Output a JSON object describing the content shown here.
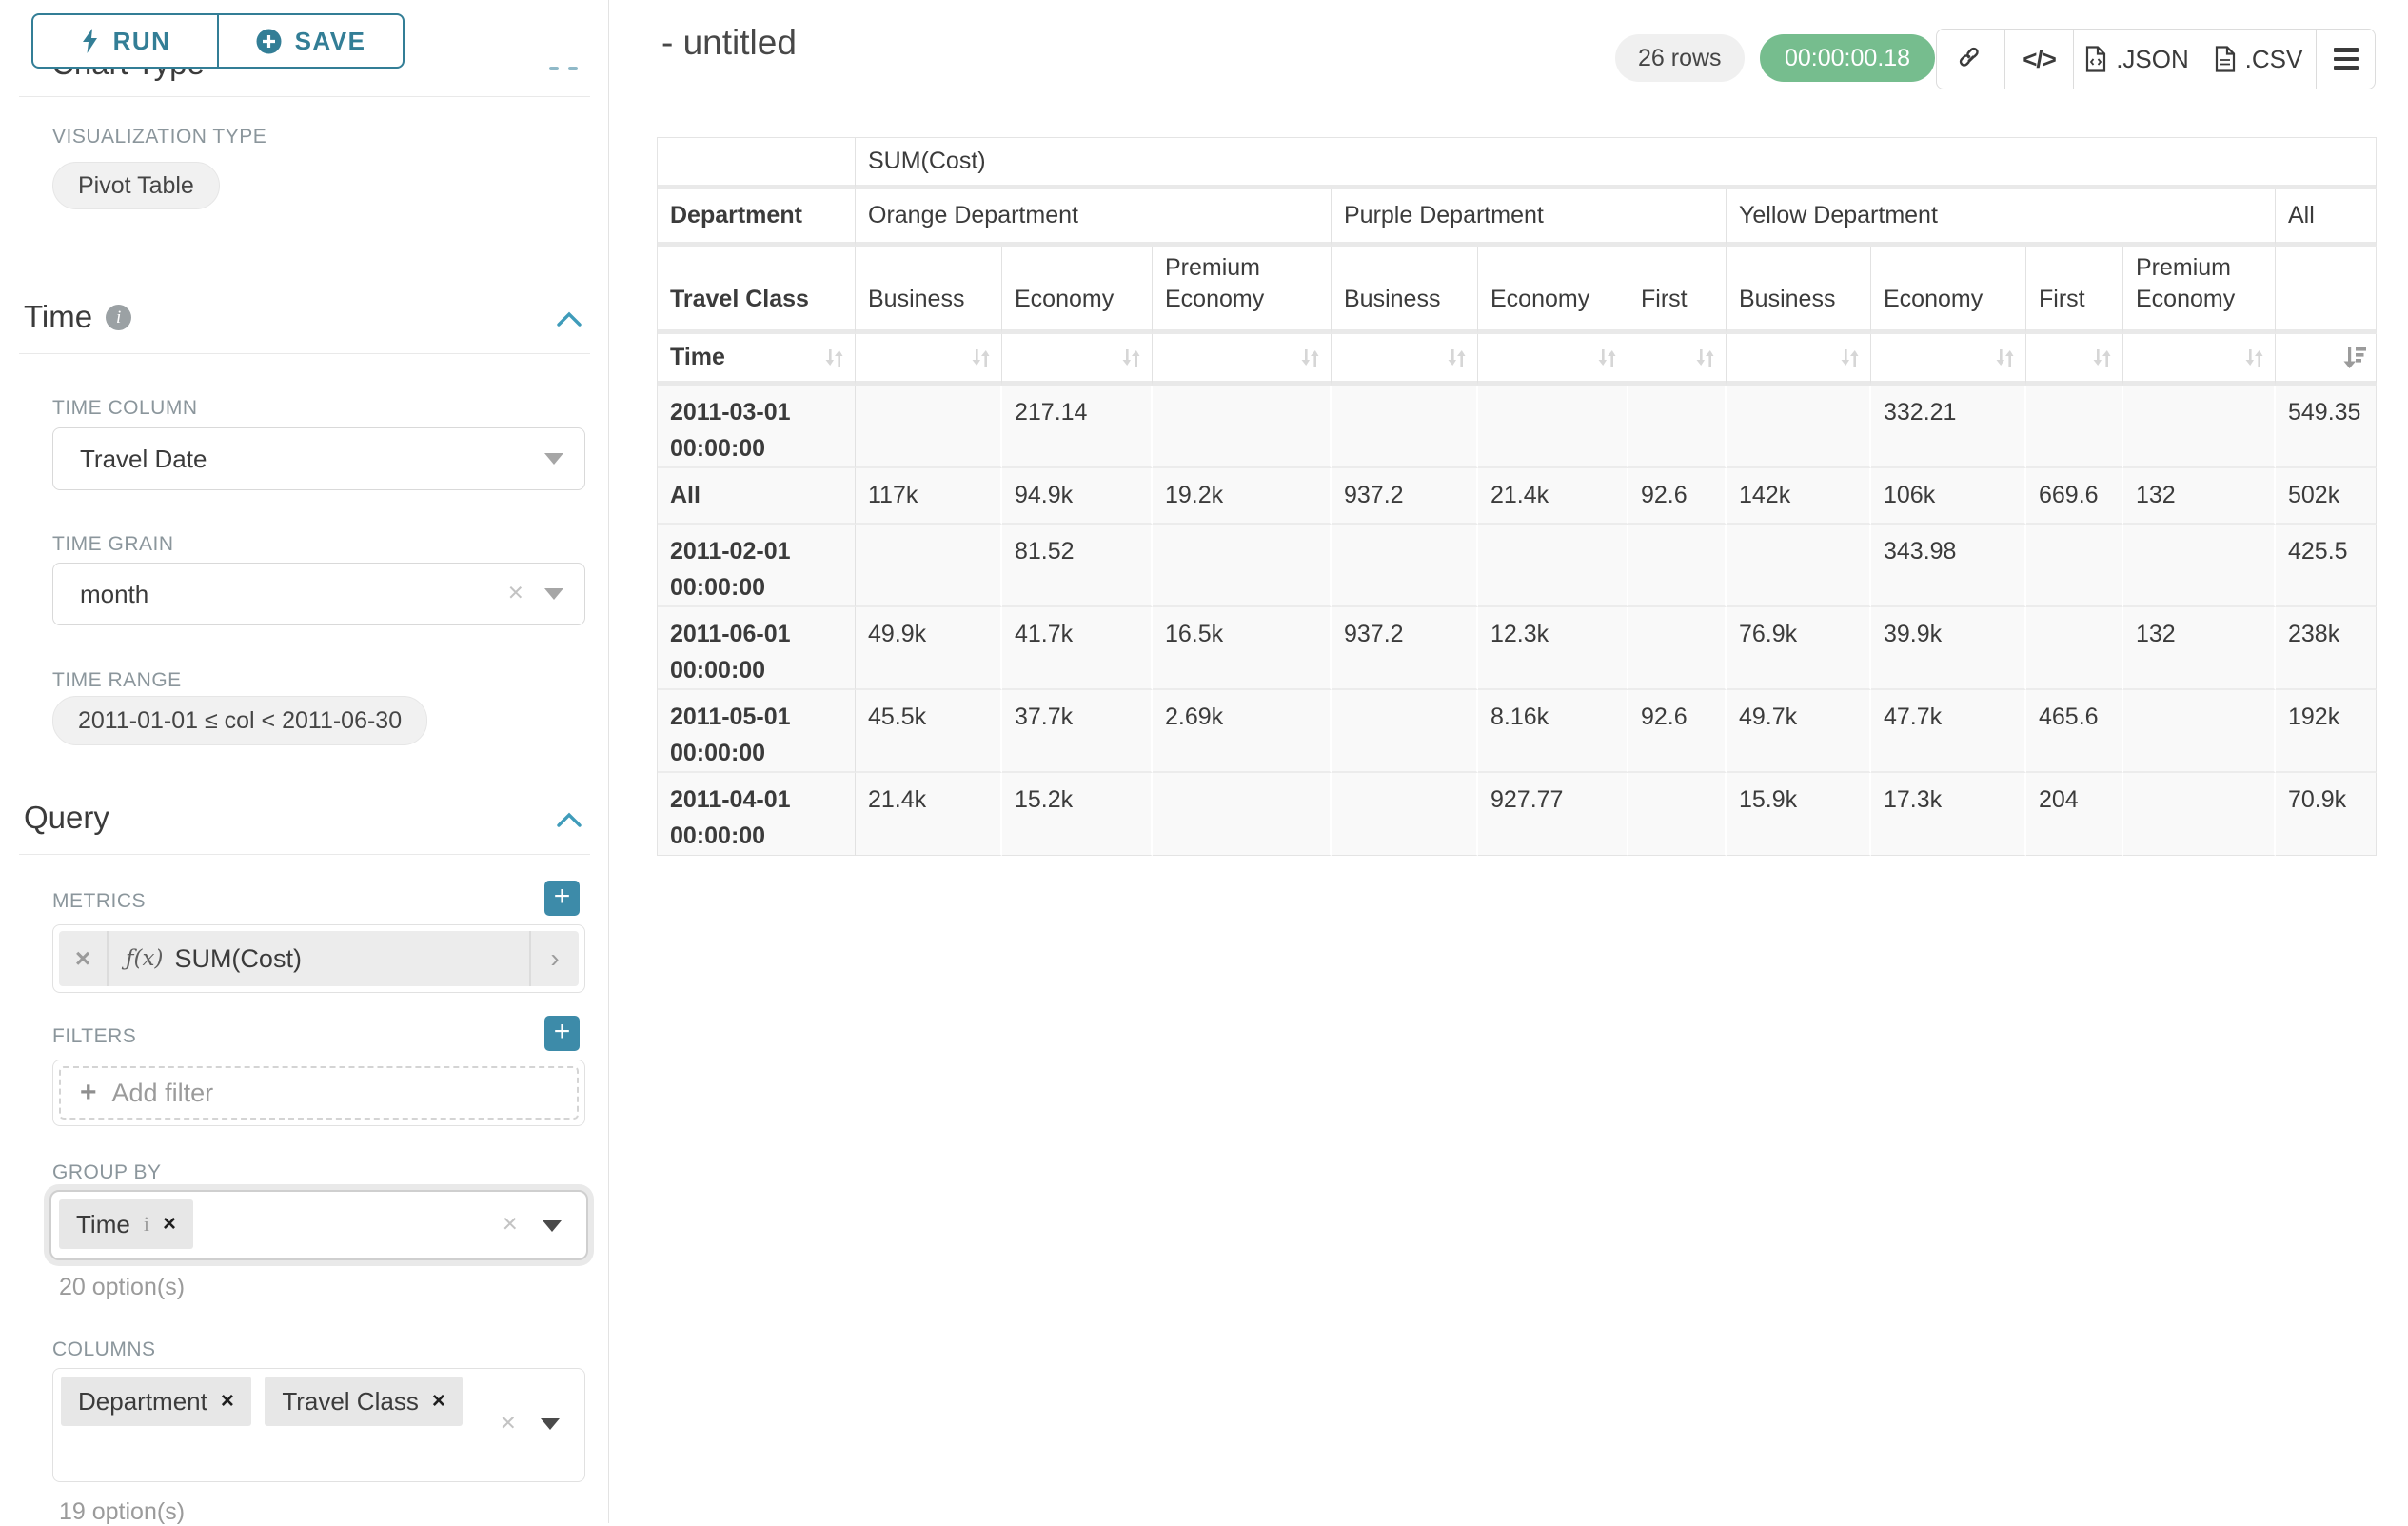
{
  "colors": {
    "accent_teal": "#337e96",
    "plus_button": "#3d8ba9",
    "timer_green": "#76bd8e",
    "chip_gray": "#e7e7e7",
    "table_cell_bg": "#f9f9f9"
  },
  "icons": {
    "run": "lightning-bolt",
    "save": "plus-circle",
    "time_info": "info-circle",
    "section_collapse": "chevron-up",
    "select_caret": "triangle-down",
    "clear": "x",
    "metric_function": "f(x)",
    "metric_expand": "chevron-right",
    "add": "plus",
    "share": "link-chain",
    "embed": "code-brackets",
    "export_file": "file-document",
    "menu": "hamburger",
    "sort_inactive": "down-up-arrows",
    "sort_active": "sort-descending-bars"
  },
  "panel": {
    "run_label": "RUN",
    "save_label": "SAVE",
    "chart_type_heading": "Chart Type",
    "viz_type_label": "VISUALIZATION TYPE",
    "viz_type_value": "Pivot Table",
    "time_section_heading": "Time",
    "time_column_label": "TIME COLUMN",
    "time_column_value": "Travel Date",
    "time_grain_label": "TIME GRAIN",
    "time_grain_value": "month",
    "time_range_label": "TIME RANGE",
    "time_range_value": "2011-01-01 ≤ col < 2011-06-30",
    "query_section_heading": "Query",
    "metrics_label": "METRICS",
    "metric_fx": "ƒ(x)",
    "metric_value": "SUM(Cost)",
    "filters_label": "FILTERS",
    "add_filter_label": "Add filter",
    "group_by_label": "GROUP BY",
    "group_by_chip": "Time",
    "group_by_options": "20 option(s)",
    "columns_label": "COLUMNS",
    "columns_chip_1": "Department",
    "columns_chip_2": "Travel Class",
    "columns_options": "19 option(s)"
  },
  "header": {
    "title": "- untitled",
    "rows_badge": "26 rows",
    "timer": "00:00:00.18",
    "json_label": ".JSON",
    "csv_label": ".CSV"
  },
  "pivot_table": {
    "metric_header": "SUM(Cost)",
    "dimension_labels": {
      "department": "Department",
      "travel_class": "Travel Class",
      "time": "Time"
    },
    "col_groups": [
      {
        "label": "Orange Department",
        "children": [
          "Business",
          "Economy",
          "Premium Economy"
        ]
      },
      {
        "label": "Purple Department",
        "children": [
          "Business",
          "Economy",
          "First"
        ]
      },
      {
        "label": "Yellow Department",
        "children": [
          "Business",
          "Economy",
          "First",
          "Premium Economy"
        ]
      },
      {
        "label": "All",
        "children": [
          ""
        ]
      }
    ],
    "rows": [
      {
        "label": "2011-03-01 00:00:00",
        "values": [
          "",
          "217.14",
          "",
          "",
          "",
          "",
          "",
          "332.21",
          "",
          "",
          "549.35"
        ]
      },
      {
        "label": "All",
        "values": [
          "117k",
          "94.9k",
          "19.2k",
          "937.2",
          "21.4k",
          "92.6",
          "142k",
          "106k",
          "669.6",
          "132",
          "502k"
        ]
      },
      {
        "label": "2011-02-01 00:00:00",
        "values": [
          "",
          "81.52",
          "",
          "",
          "",
          "",
          "",
          "343.98",
          "",
          "",
          "425.5"
        ]
      },
      {
        "label": "2011-06-01 00:00:00",
        "values": [
          "49.9k",
          "41.7k",
          "16.5k",
          "937.2",
          "12.3k",
          "",
          "76.9k",
          "39.9k",
          "",
          "132",
          "238k"
        ]
      },
      {
        "label": "2011-05-01 00:00:00",
        "values": [
          "45.5k",
          "37.7k",
          "2.69k",
          "",
          "8.16k",
          "92.6",
          "49.7k",
          "47.7k",
          "465.6",
          "",
          "192k"
        ]
      },
      {
        "label": "2011-04-01 00:00:00",
        "values": [
          "21.4k",
          "15.2k",
          "",
          "",
          "927.77",
          "",
          "15.9k",
          "17.3k",
          "204",
          "",
          "70.9k"
        ]
      }
    ]
  }
}
